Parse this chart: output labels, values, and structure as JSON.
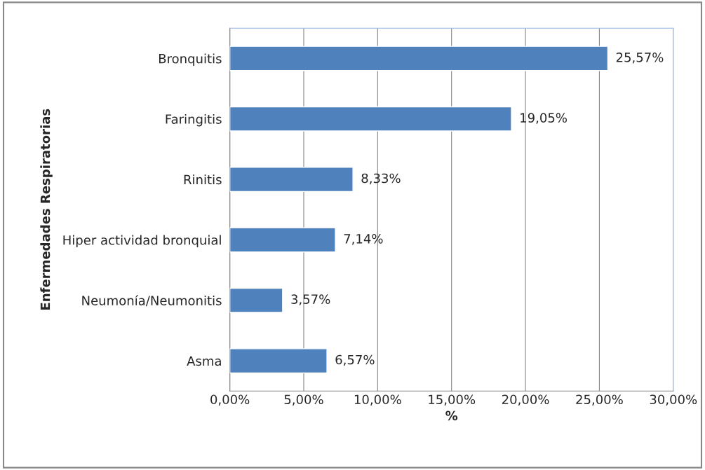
{
  "chart_data": {
    "type": "bar",
    "orientation": "horizontal",
    "xlabel": "%",
    "ylabel": "Enfermedades Respiratorias",
    "categories": [
      "Bronquitis",
      "Faringitis",
      "Rinitis",
      "Hiper actividad bronquial",
      "Neumonía/Neumonitis",
      "Asma"
    ],
    "values": [
      25.57,
      19.05,
      8.33,
      7.14,
      3.57,
      6.57
    ],
    "value_labels": [
      "25,57%",
      "19,05%",
      "8,33%",
      "7,14%",
      "3,57%",
      "6,57%"
    ],
    "color": "#4f81bd",
    "xlim": [
      0,
      30
    ],
    "xticks": [
      {
        "value": 0,
        "label": "0,00%"
      },
      {
        "value": 5,
        "label": "5,00%"
      },
      {
        "value": 10,
        "label": "10,00%"
      },
      {
        "value": 15,
        "label": "15,00%"
      },
      {
        "value": 20,
        "label": "20,00%"
      },
      {
        "value": 25,
        "label": "25,00%"
      },
      {
        "value": 30,
        "label": "30,00%"
      }
    ],
    "grid": "x"
  }
}
